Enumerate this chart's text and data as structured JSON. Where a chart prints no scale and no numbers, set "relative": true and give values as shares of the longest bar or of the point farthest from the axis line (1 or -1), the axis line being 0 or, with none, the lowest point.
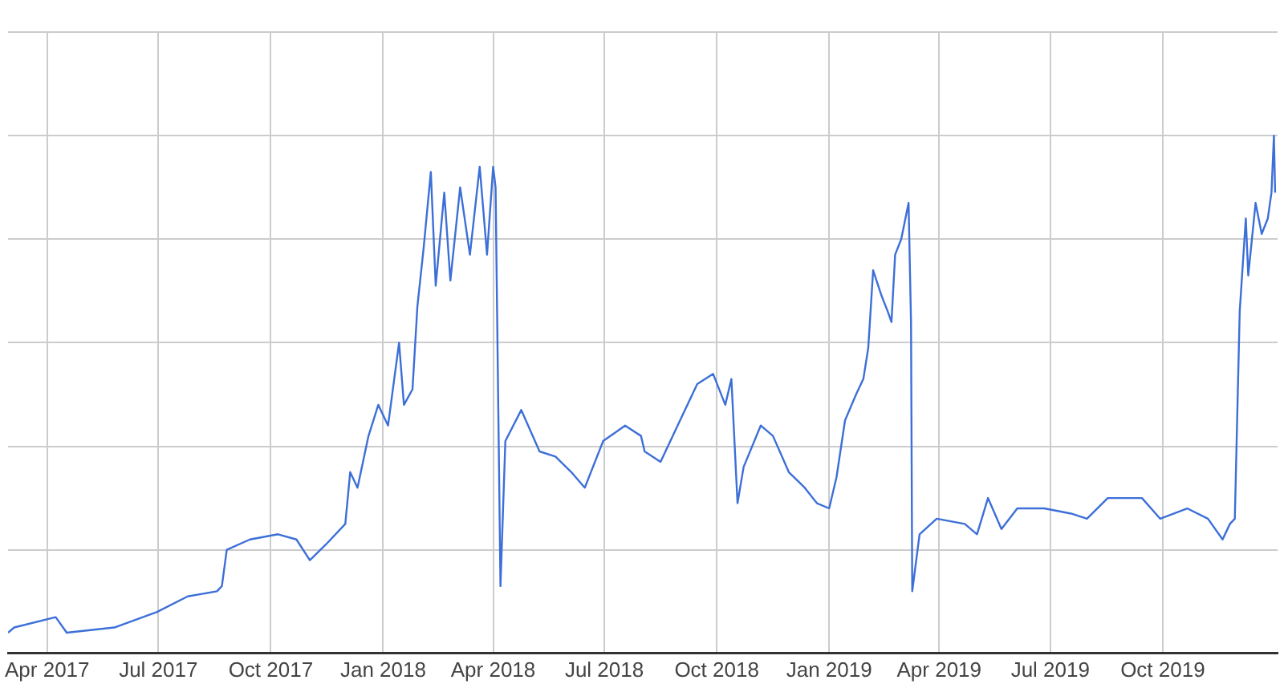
{
  "chart_data": {
    "type": "line",
    "relative": true,
    "grid": true,
    "legend": false,
    "marker": "none",
    "line_style": "solid",
    "xlim": [
      "2017-02-28",
      "2020-01-03"
    ],
    "xticks": [
      {
        "value": "2017-04-01",
        "label": "Apr 2017"
      },
      {
        "value": "2017-07-01",
        "label": "Jul 2017"
      },
      {
        "value": "2017-10-01",
        "label": "Oct 2017"
      },
      {
        "value": "2018-01-01",
        "label": "Jan 2018"
      },
      {
        "value": "2018-04-01",
        "label": "Apr 2018"
      },
      {
        "value": "2018-07-01",
        "label": "Jul 2018"
      },
      {
        "value": "2018-10-01",
        "label": "Oct 2018"
      },
      {
        "value": "2019-01-01",
        "label": "Jan 2019"
      },
      {
        "value": "2019-04-01",
        "label": "Apr 2019"
      },
      {
        "value": "2019-07-01",
        "label": "Jul 2019"
      },
      {
        "value": "2019-10-01",
        "label": "Oct 2019"
      }
    ],
    "x": [
      "2017-02-28",
      "2017-03-05",
      "2017-04-08",
      "2017-04-17",
      "2017-05-26",
      "2017-06-30",
      "2017-07-25",
      "2017-08-18",
      "2017-08-22",
      "2017-08-26",
      "2017-09-14",
      "2017-10-07",
      "2017-10-22",
      "2017-11-02",
      "2017-11-15",
      "2017-12-01",
      "2017-12-05",
      "2017-12-11",
      "2017-12-20",
      "2017-12-28",
      "2018-01-05",
      "2018-01-14",
      "2018-01-18",
      "2018-01-25",
      "2018-01-29",
      "2018-02-03",
      "2018-02-09",
      "2018-02-13",
      "2018-02-20",
      "2018-02-25",
      "2018-03-05",
      "2018-03-13",
      "2018-03-21",
      "2018-03-27",
      "2018-04-01",
      "2018-04-03",
      "2018-04-07",
      "2018-04-11",
      "2018-04-24",
      "2018-05-09",
      "2018-05-22",
      "2018-06-04",
      "2018-06-15",
      "2018-06-30",
      "2018-07-18",
      "2018-07-31",
      "2018-08-03",
      "2018-08-16",
      "2018-09-05",
      "2018-09-15",
      "2018-09-28",
      "2018-10-08",
      "2018-10-13",
      "2018-10-18",
      "2018-10-23",
      "2018-11-06",
      "2018-11-16",
      "2018-11-29",
      "2018-12-12",
      "2018-12-22",
      "2019-01-01",
      "2019-01-07",
      "2019-01-14",
      "2019-01-23",
      "2019-01-29",
      "2019-02-02",
      "2019-02-06",
      "2019-02-13",
      "2019-02-18",
      "2019-02-21",
      "2019-02-24",
      "2019-03-01",
      "2019-03-07",
      "2019-03-09",
      "2019-03-10",
      "2019-03-16",
      "2019-03-30",
      "2019-04-22",
      "2019-05-02",
      "2019-05-11",
      "2019-05-22",
      "2019-06-04",
      "2019-06-26",
      "2019-07-18",
      "2019-07-31",
      "2019-08-17",
      "2019-08-30",
      "2019-09-14",
      "2019-09-29",
      "2019-10-21",
      "2019-11-07",
      "2019-11-19",
      "2019-11-25",
      "2019-11-29",
      "2019-12-03",
      "2019-12-08",
      "2019-12-10",
      "2019-12-16",
      "2019-12-21",
      "2019-12-26",
      "2019-12-29",
      "2019-12-31",
      "2020-01-01"
    ],
    "series": [
      {
        "color": "#3d6fd8",
        "values": [
          0.04,
          0.05,
          0.07,
          0.04,
          0.05,
          0.08,
          0.11,
          0.12,
          0.13,
          0.2,
          0.22,
          0.23,
          0.22,
          0.18,
          0.21,
          0.25,
          0.35,
          0.32,
          0.42,
          0.48,
          0.44,
          0.6,
          0.48,
          0.51,
          0.67,
          0.78,
          0.93,
          0.71,
          0.89,
          0.72,
          0.9,
          0.77,
          0.94,
          0.77,
          0.94,
          0.9,
          0.13,
          0.41,
          0.47,
          0.39,
          0.38,
          0.35,
          0.32,
          0.41,
          0.44,
          0.42,
          0.39,
          0.37,
          0.47,
          0.52,
          0.54,
          0.48,
          0.53,
          0.29,
          0.36,
          0.44,
          0.42,
          0.35,
          0.32,
          0.29,
          0.28,
          0.34,
          0.45,
          0.5,
          0.53,
          0.59,
          0.74,
          0.69,
          0.66,
          0.64,
          0.77,
          0.8,
          0.87,
          0.64,
          0.12,
          0.23,
          0.26,
          0.25,
          0.23,
          0.3,
          0.24,
          0.28,
          0.28,
          0.27,
          0.26,
          0.3,
          0.3,
          0.3,
          0.26,
          0.28,
          0.26,
          0.22,
          0.25,
          0.26,
          0.66,
          0.84,
          0.73,
          0.87,
          0.81,
          0.84,
          0.89,
          1,
          0.89
        ]
      }
    ]
  }
}
